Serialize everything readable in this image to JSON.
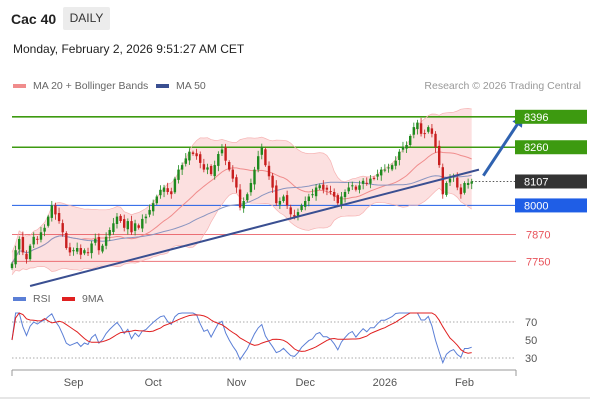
{
  "header": {
    "ticker": "Cac 40",
    "period": "DAILY"
  },
  "timestamp": "Monday, February 2, 2026 9:51:27 AM CET",
  "legend": {
    "ma20": {
      "label": "MA 20 + Bollinger Bands",
      "color": "#f08c8c"
    },
    "ma50": {
      "label": "MA 50",
      "color": "#3a4f91"
    }
  },
  "credit": "Research © 2026 Trading Central",
  "rsi_legend": {
    "rsi": {
      "label": "RSI",
      "color": "#5b7fd6"
    },
    "ma9": {
      "label": "9MA",
      "color": "#e02020"
    }
  },
  "chart_data": [
    {
      "type": "line",
      "ylim": [
        7640,
        8480
      ],
      "xlabels": [
        {
          "label": "Sep",
          "index": 17
        },
        {
          "label": "Oct",
          "index": 39
        },
        {
          "label": "Nov",
          "index": 62
        },
        {
          "label": "Dec",
          "index": 81
        },
        {
          "label": "2026",
          "index": 103
        },
        {
          "label": "Feb",
          "index": 125
        }
      ],
      "bar_count": 128,
      "levels": [
        {
          "value": 8396,
          "label": "8396",
          "kind": "resistance",
          "color": "#3d9a10"
        },
        {
          "value": 8260,
          "label": "8260",
          "kind": "resistance",
          "color": "#3d9a10"
        },
        {
          "value": 8107,
          "label": "8107",
          "kind": "last",
          "color": "#333333"
        },
        {
          "value": 8000,
          "label": "8000",
          "kind": "pivot",
          "color": "#1f5ee6"
        },
        {
          "value": 7870,
          "label": "7870",
          "kind": "support",
          "color": "#e8525a"
        },
        {
          "value": 7750,
          "label": "7750",
          "kind": "support",
          "color": "#e8525a"
        }
      ],
      "trendline": {
        "from": {
          "index": 5,
          "value": 7640
        },
        "to": {
          "index": 129,
          "value": 8160
        }
      },
      "projection": {
        "from": {
          "index": 128,
          "value": 8115
        },
        "to": {
          "index": 143,
          "value": 8396
        }
      },
      "close": [
        7740,
        7800,
        7850,
        7790,
        7760,
        7820,
        7860,
        7850,
        7880,
        7900,
        7950,
        8000,
        7960,
        7930,
        7880,
        7810,
        7790,
        7800,
        7810,
        7780,
        7800,
        7790,
        7830,
        7850,
        7800,
        7820,
        7860,
        7890,
        7920,
        7950,
        7930,
        7900,
        7930,
        7880,
        7920,
        7900,
        7940,
        7950,
        7980,
        8010,
        8040,
        8070,
        8080,
        8060,
        8050,
        8120,
        8160,
        8180,
        8210,
        8240,
        8230,
        8220,
        8190,
        8160,
        8170,
        8140,
        8180,
        8230,
        8250,
        8200,
        8160,
        8120,
        8080,
        7990,
        8020,
        8050,
        8100,
        8160,
        8220,
        8260,
        8180,
        8130,
        8080,
        8010,
        8020,
        8040,
        8000,
        7960,
        7950,
        7970,
        8000,
        8020,
        8040,
        8050,
        8080,
        8090,
        8070,
        8070,
        8060,
        8040,
        8010,
        8040,
        8060,
        8080,
        8090,
        8070,
        8090,
        8110,
        8100,
        8120,
        8120,
        8140,
        8160,
        8160,
        8170,
        8180,
        8200,
        8240,
        8260,
        8270,
        8310,
        8350,
        8370,
        8320,
        8320,
        8350,
        8320,
        8260,
        8180,
        8050,
        8100,
        8120,
        8130,
        8080,
        8050,
        8100,
        8100,
        8107
      ],
      "rsi_scale": {
        "ticks": [
          70,
          50,
          30
        ],
        "lines": [
          70,
          30
        ]
      }
    }
  ]
}
